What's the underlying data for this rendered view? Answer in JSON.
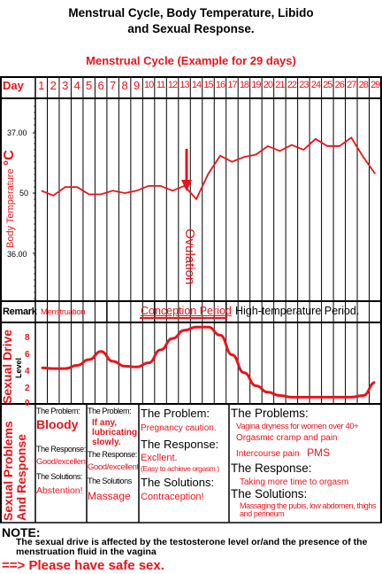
{
  "title_line1": "Menstrual Cycle, Body Temperature, Libido",
  "title_line2": "and Sexual Response.",
  "subtitle": "Menstrual Cycle (Example for 29 days)",
  "day_label": "Day",
  "days": [
    "1",
    "2",
    "3",
    "4",
    "5",
    "6",
    "7",
    "8",
    "9",
    "10",
    "11",
    "12",
    "13",
    "14",
    "15",
    "16",
    "17",
    "18",
    "19",
    "20",
    "21",
    "22",
    "23",
    "24",
    "25",
    "26",
    "27",
    "28",
    "29"
  ],
  "temp_axis": {
    "label": "Body Temperature",
    "unit": "°C",
    "ticks": [
      "37.00",
      "50",
      "36.00"
    ]
  },
  "ovulation_label": "Ovulation",
  "remark": {
    "label": "Remark",
    "menstruation": "Menstruation",
    "conception": "Conception Period",
    "high_temp": "High-temperature Period."
  },
  "sexual_drive": {
    "label": "Sexual Drive",
    "level_label": "Level",
    "ticks": [
      "8",
      "6",
      "4",
      "2",
      "0"
    ]
  },
  "problems_side_label": "Sexual Problems And Response",
  "col1": {
    "problem_label": "The Problem:",
    "problem": "Bloody",
    "response_label": "The Response:",
    "response": "Good/excellent.",
    "solutions_label": "The Solutions:",
    "solution": "Abstention!"
  },
  "col2": {
    "problem_label": "The Problem:",
    "problem": "If any, lubricating slowly.",
    "response_label": "The Response:",
    "response": "Good/excellent",
    "solutions_label": "The Solutions",
    "solution": "Massage"
  },
  "col3": {
    "problem_label": "The Problem:",
    "problem": "Pregnancy caution.",
    "response_label": "The Response:",
    "response": "Excllent.",
    "response_note": "(Easy to achieve orgasm )",
    "solutions_label": "The Solutions:",
    "solution": "Contraception!"
  },
  "col4": {
    "problems_label": "The Problems:",
    "problem1": "Vagina dryness for women over 40+",
    "problem2": "Orgasmic cramp and pain",
    "problem3": "Intercourse pain",
    "pms": "PMS",
    "response_label": "The Response:",
    "response": "Taking more time to orgasm",
    "solutions_label": "The Solutions:",
    "solution": "Massaging the pubis, low abdomen, thighs and perineum"
  },
  "note_label": "NOTE:",
  "note_text": "The sexual drive is affected by the testosterone level or/and the presence of the menstruation fluid in the vagina",
  "safe_sex": "==> Please have safe sex.",
  "colors": {
    "accent": "#e8141b",
    "line": "#000000"
  },
  "temperature_curve": [
    {
      "day": 1,
      "temp": 36.52
    },
    {
      "day": 2,
      "temp": 36.48
    },
    {
      "day": 3,
      "temp": 36.55
    },
    {
      "day": 4,
      "temp": 36.55
    },
    {
      "day": 5,
      "temp": 36.49
    },
    {
      "day": 6,
      "temp": 36.49
    },
    {
      "day": 7,
      "temp": 36.52
    },
    {
      "day": 8,
      "temp": 36.5
    },
    {
      "day": 9,
      "temp": 36.52
    },
    {
      "day": 10,
      "temp": 36.56
    },
    {
      "day": 11,
      "temp": 36.56
    },
    {
      "day": 12,
      "temp": 36.52
    },
    {
      "day": 13,
      "temp": 36.56
    },
    {
      "day": 14,
      "temp": 36.45
    },
    {
      "day": 15,
      "temp": 36.66
    },
    {
      "day": 16,
      "temp": 36.81
    },
    {
      "day": 17,
      "temp": 36.76
    },
    {
      "day": 18,
      "temp": 36.8
    },
    {
      "day": 19,
      "temp": 36.82
    },
    {
      "day": 20,
      "temp": 36.89
    },
    {
      "day": 21,
      "temp": 36.85
    },
    {
      "day": 22,
      "temp": 36.9
    },
    {
      "day": 23,
      "temp": 36.86
    },
    {
      "day": 24,
      "temp": 36.95
    },
    {
      "day": 25,
      "temp": 36.89
    },
    {
      "day": 26,
      "temp": 36.89
    },
    {
      "day": 27,
      "temp": 36.96
    },
    {
      "day": 28,
      "temp": 36.8
    },
    {
      "day": 29,
      "temp": 36.66
    }
  ],
  "drive_curve": [
    {
      "day": 1,
      "level": 4.0
    },
    {
      "day": 2,
      "level": 3.9
    },
    {
      "day": 3,
      "level": 3.9
    },
    {
      "day": 4,
      "level": 4.3
    },
    {
      "day": 5,
      "level": 5.0
    },
    {
      "day": 6,
      "level": 6.0
    },
    {
      "day": 7,
      "level": 4.8
    },
    {
      "day": 8,
      "level": 4.2
    },
    {
      "day": 9,
      "level": 4.1
    },
    {
      "day": 10,
      "level": 4.6
    },
    {
      "day": 11,
      "level": 6.2
    },
    {
      "day": 12,
      "level": 7.6
    },
    {
      "day": 13,
      "level": 8.6
    },
    {
      "day": 14,
      "level": 9.0
    },
    {
      "day": 15,
      "level": 9.0
    },
    {
      "day": 16,
      "level": 8.0
    },
    {
      "day": 17,
      "level": 5.6
    },
    {
      "day": 18,
      "level": 3.4
    },
    {
      "day": 19,
      "level": 1.8
    },
    {
      "day": 20,
      "level": 1.0
    },
    {
      "day": 21,
      "level": 0.6
    },
    {
      "day": 22,
      "level": 0.4
    },
    {
      "day": 23,
      "level": 0.4
    },
    {
      "day": 24,
      "level": 0.4
    },
    {
      "day": 25,
      "level": 0.4
    },
    {
      "day": 26,
      "level": 0.4
    },
    {
      "day": 27,
      "level": 0.4
    },
    {
      "day": 28,
      "level": 0.6
    },
    {
      "day": 29,
      "level": 2.2
    }
  ]
}
